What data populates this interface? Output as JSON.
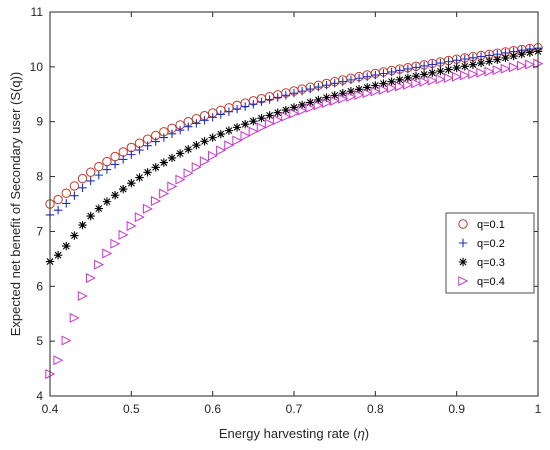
{
  "chart_data": {
    "type": "scatter",
    "title": "",
    "xlabel": "Energy harvesting rate (",
    "xlabel_symbol": "η",
    "xlabel_close": ")",
    "ylabel": "Expected net benefit of Secondary user (S(q))",
    "xlim": [
      0.4,
      1.0
    ],
    "ylim": [
      4,
      11
    ],
    "xticks": [
      "0.4",
      "0.5",
      "0.6",
      "0.7",
      "0.8",
      "0.9",
      "1"
    ],
    "yticks": [
      "4",
      "5",
      "6",
      "7",
      "8",
      "9",
      "10",
      "11"
    ],
    "grid": false,
    "legend_position": "right",
    "series": [
      {
        "name": "q=0.1",
        "marker": "circle",
        "color": "#c0392b",
        "x": [
          0.4,
          0.45,
          0.5,
          0.55,
          0.6,
          0.65,
          0.7,
          0.75,
          0.8,
          0.85,
          0.9,
          0.95,
          1.0
        ],
        "y": [
          7.5,
          8.08,
          8.53,
          8.88,
          9.16,
          9.38,
          9.56,
          9.73,
          9.88,
          10.01,
          10.14,
          10.25,
          10.35
        ]
      },
      {
        "name": "q=0.2",
        "marker": "plus",
        "color": "#1f2fbf",
        "x": [
          0.4,
          0.45,
          0.5,
          0.55,
          0.6,
          0.65,
          0.7,
          0.75,
          0.8,
          0.85,
          0.9,
          0.95,
          1.0
        ],
        "y": [
          7.3,
          7.92,
          8.4,
          8.78,
          9.08,
          9.32,
          9.52,
          9.7,
          9.85,
          9.99,
          10.12,
          10.23,
          10.34
        ]
      },
      {
        "name": "q=0.3",
        "marker": "asterisk",
        "color": "#000000",
        "x": [
          0.4,
          0.45,
          0.5,
          0.55,
          0.6,
          0.65,
          0.7,
          0.75,
          0.8,
          0.85,
          0.9,
          0.95,
          1.0
        ],
        "y": [
          6.45,
          7.28,
          7.88,
          8.34,
          8.71,
          9.01,
          9.26,
          9.48,
          9.66,
          9.83,
          9.98,
          10.13,
          10.28
        ]
      },
      {
        "name": "q=0.4",
        "marker": "triangle-right",
        "color": "#cc33cc",
        "x": [
          0.4,
          0.45,
          0.5,
          0.55,
          0.6,
          0.65,
          0.7,
          0.75,
          0.8,
          0.85,
          0.9,
          0.95,
          1.0
        ],
        "y": [
          4.4,
          6.15,
          7.1,
          7.82,
          8.38,
          8.82,
          9.15,
          9.38,
          9.55,
          9.7,
          9.82,
          9.94,
          10.06
        ]
      }
    ]
  }
}
